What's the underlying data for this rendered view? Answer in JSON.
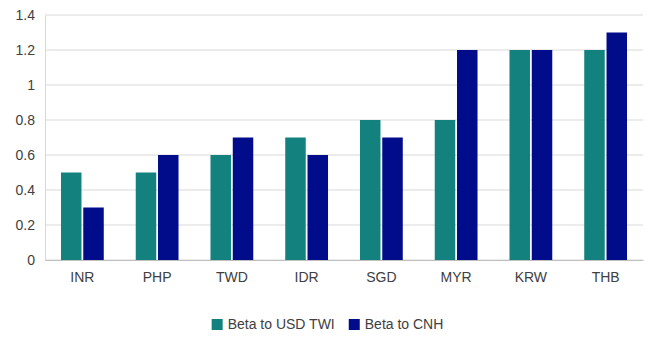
{
  "chart_data": {
    "type": "bar",
    "categories": [
      "INR",
      "PHP",
      "TWD",
      "IDR",
      "SGD",
      "MYR",
      "KRW",
      "THB"
    ],
    "series": [
      {
        "name": "Beta to USD TWI",
        "color": "#13827f",
        "values": [
          0.5,
          0.5,
          0.6,
          0.7,
          0.8,
          0.8,
          1.2,
          1.2
        ]
      },
      {
        "name": "Beta to CNH",
        "color": "#000c8a",
        "values": [
          0.3,
          0.6,
          0.7,
          0.6,
          0.7,
          1.2,
          1.2,
          1.3
        ]
      }
    ],
    "ylim": [
      0,
      1.4
    ],
    "yticks": [
      0,
      0.2,
      0.4,
      0.6,
      0.8,
      1,
      1.2,
      1.4
    ],
    "grid": true,
    "legend": "bottom"
  }
}
